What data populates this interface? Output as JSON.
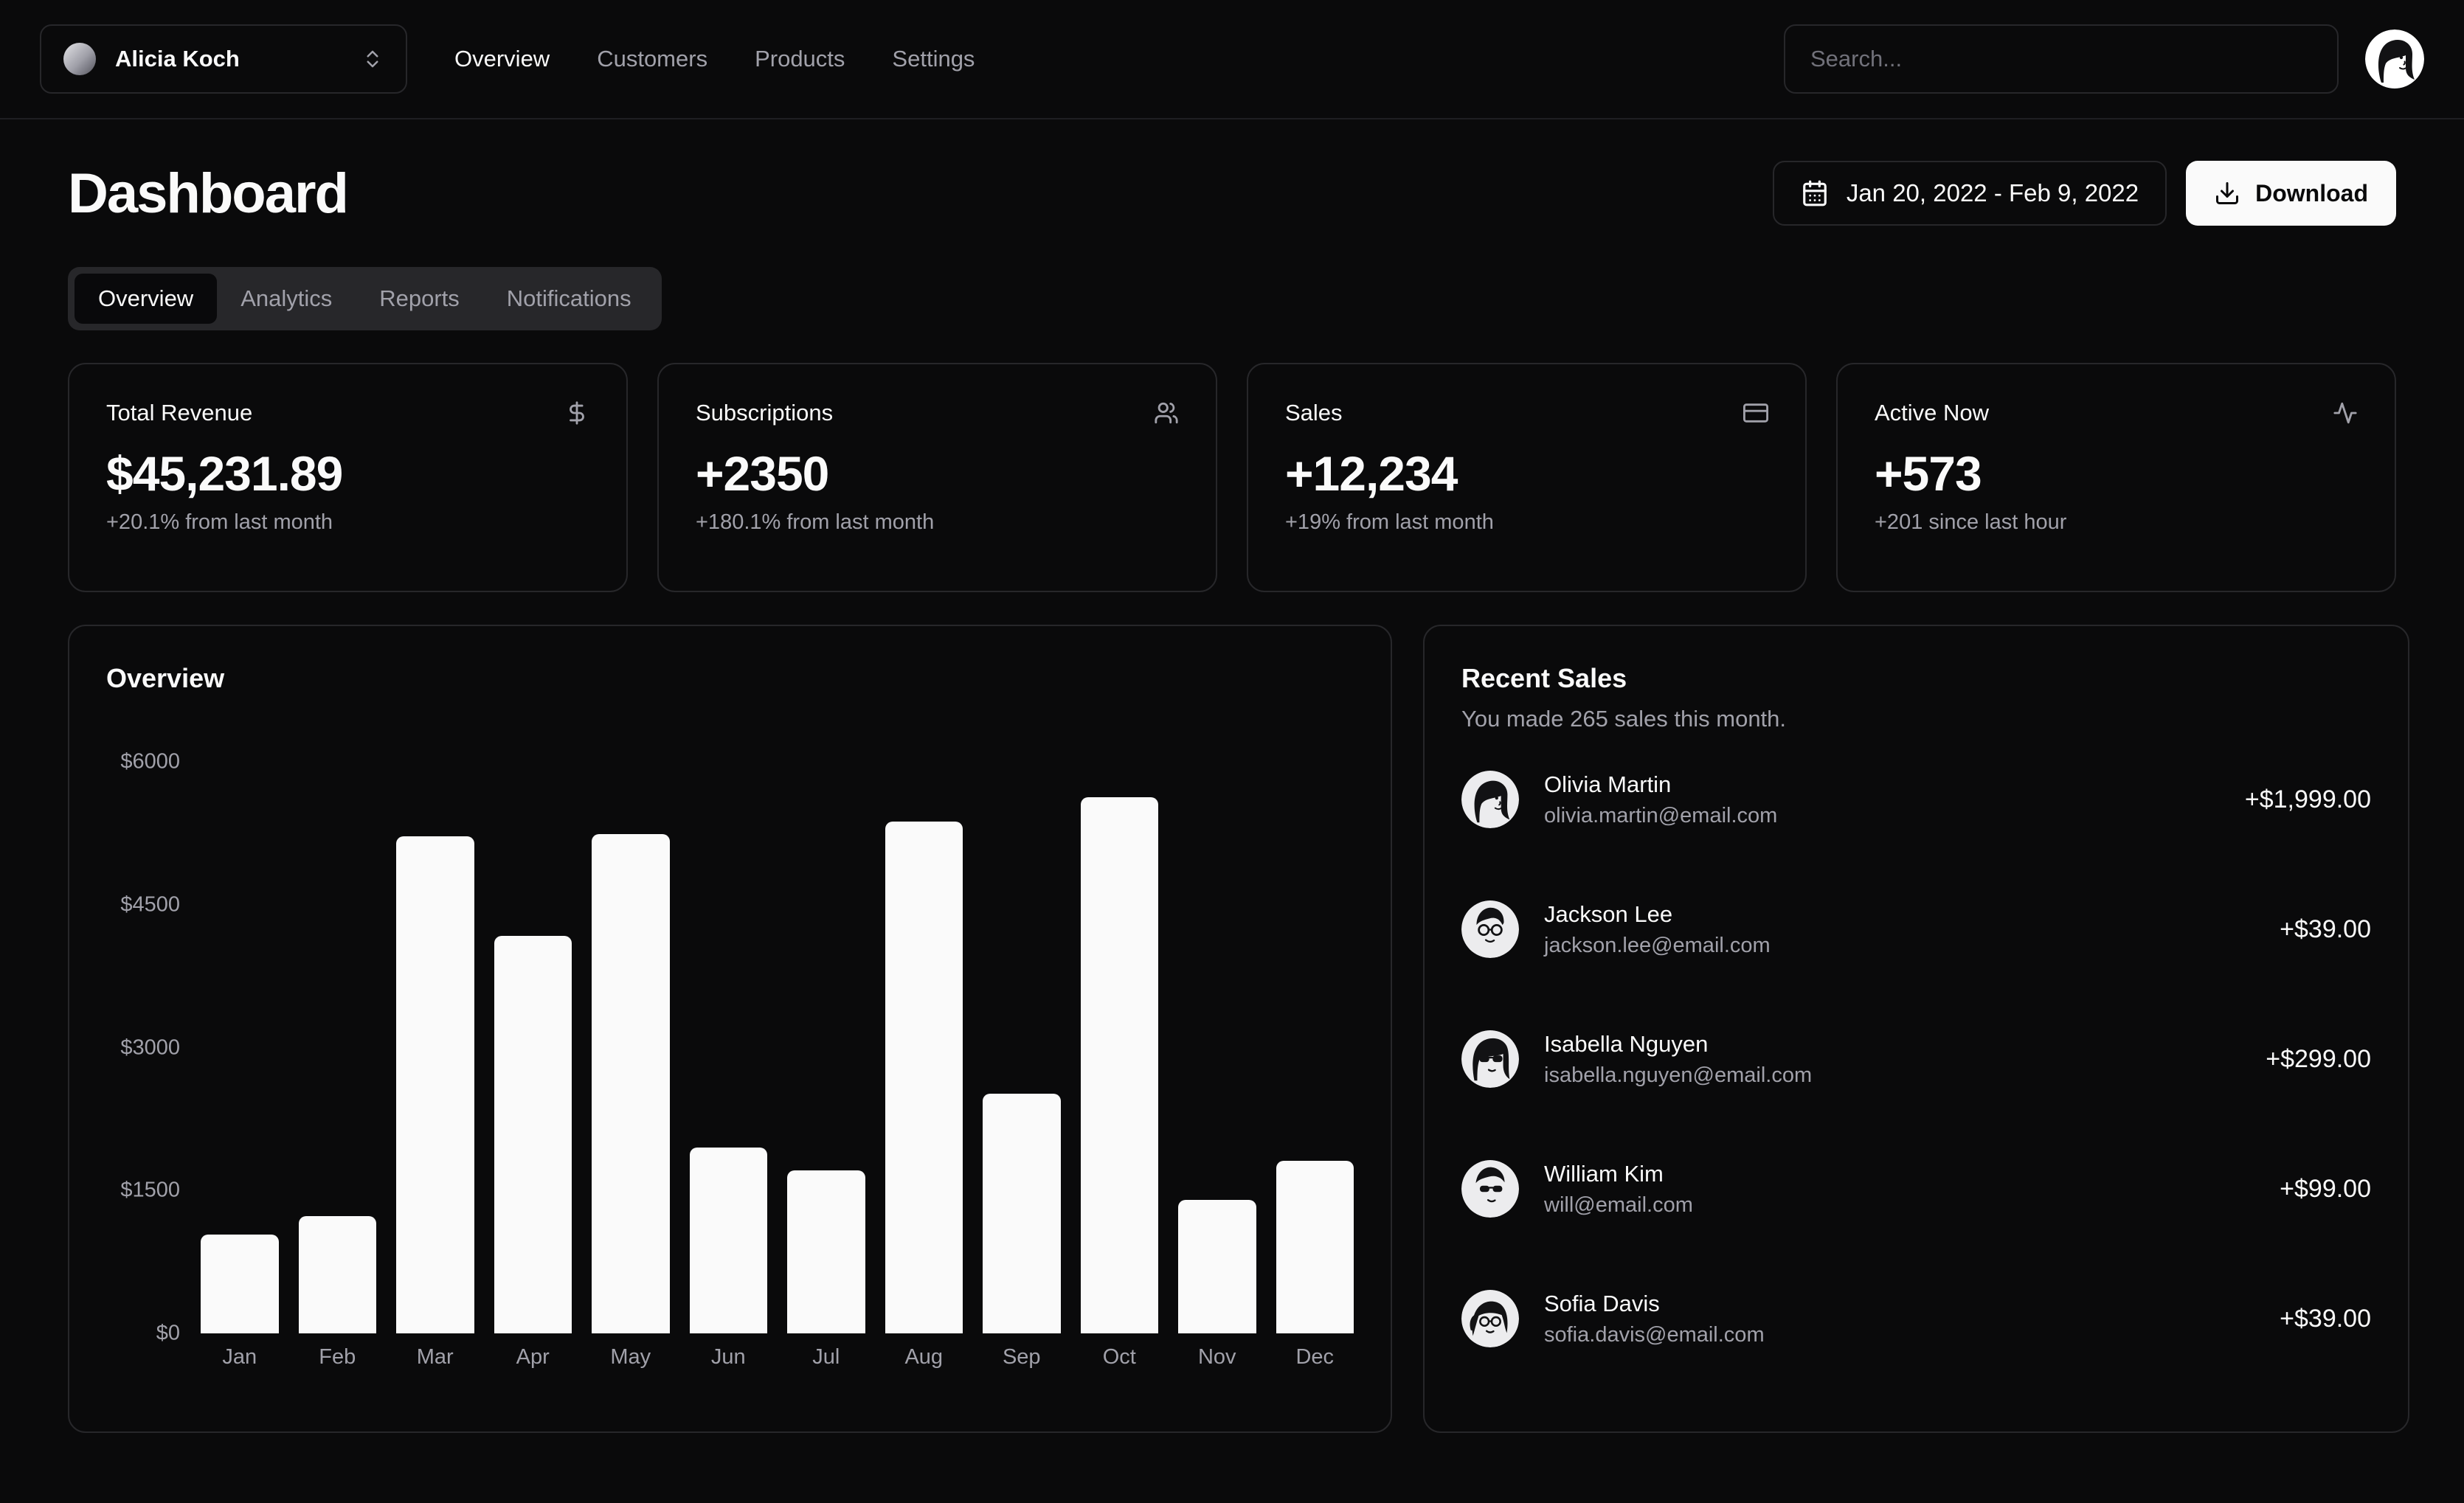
{
  "header": {
    "team_name": "Alicia Koch",
    "nav_items": [
      {
        "label": "Overview",
        "active": true
      },
      {
        "label": "Customers",
        "active": false
      },
      {
        "label": "Products",
        "active": false
      },
      {
        "label": "Settings",
        "active": false
      }
    ],
    "search_placeholder": "Search..."
  },
  "page": {
    "title": "Dashboard"
  },
  "toolbar": {
    "date_range": "Jan 20, 2022 - Feb 9, 2022",
    "download_label": "Download"
  },
  "tabs": [
    {
      "label": "Overview",
      "active": true
    },
    {
      "label": "Analytics",
      "active": false
    },
    {
      "label": "Reports",
      "active": false
    },
    {
      "label": "Notifications",
      "active": false
    }
  ],
  "stats": [
    {
      "title": "Total Revenue",
      "icon": "dollar-sign-icon",
      "value": "$45,231.89",
      "change": "+20.1% from last month"
    },
    {
      "title": "Subscriptions",
      "icon": "users-icon",
      "value": "+2350",
      "change": "+180.1% from last month"
    },
    {
      "title": "Sales",
      "icon": "credit-card-icon",
      "value": "+12,234",
      "change": "+19% from last month"
    },
    {
      "title": "Active Now",
      "icon": "activity-icon",
      "value": "+573",
      "change": "+201 since last hour"
    }
  ],
  "chart_data": {
    "type": "bar",
    "title": "Overview",
    "categories": [
      "Jan",
      "Feb",
      "Mar",
      "Apr",
      "May",
      "Jun",
      "Jul",
      "Aug",
      "Sep",
      "Oct",
      "Nov",
      "Dec"
    ],
    "values": [
      1040,
      1230,
      5220,
      4170,
      5240,
      1950,
      1710,
      5370,
      2520,
      5630,
      1400,
      1810
    ],
    "xlabel": "",
    "ylabel": "",
    "ylim": [
      0,
      6000
    ],
    "yticks": [
      "$6000",
      "$4500",
      "$3000",
      "$1500",
      "$0"
    ],
    "ytick_values": [
      6000,
      4500,
      3000,
      1500,
      0
    ],
    "bar_color": "#fafafa",
    "grid": false,
    "legend": false
  },
  "recent_sales": {
    "title": "Recent Sales",
    "subtitle": "You made 265 sales this month.",
    "items": [
      {
        "name": "Olivia Martin",
        "email": "olivia.martin@email.com",
        "amount": "+$1,999.00"
      },
      {
        "name": "Jackson Lee",
        "email": "jackson.lee@email.com",
        "amount": "+$39.00"
      },
      {
        "name": "Isabella Nguyen",
        "email": "isabella.nguyen@email.com",
        "amount": "+$299.00"
      },
      {
        "name": "William Kim",
        "email": "will@email.com",
        "amount": "+$99.00"
      },
      {
        "name": "Sofia Davis",
        "email": "sofia.davis@email.com",
        "amount": "+$39.00"
      }
    ]
  },
  "colors": {
    "background": "#0a0a0b",
    "card_border": "#27272a",
    "muted_text": "#a1a1aa",
    "placeholder_text": "#71717a",
    "primary_text": "#fafafa",
    "tabs_background": "#27272a",
    "active_tab_background": "#09090b",
    "bar_fill": "#fafafa",
    "download_button_background": "#fafafa",
    "download_button_text": "#0a0a0b"
  }
}
